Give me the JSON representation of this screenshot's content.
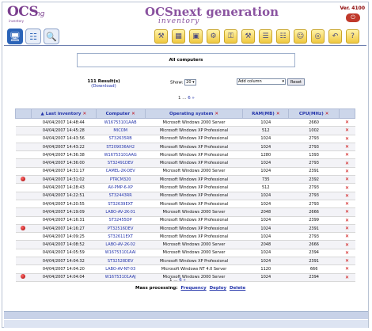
{
  "header": {
    "logo": "OCS",
    "logo_sub": "inventory",
    "logo_num": "ng",
    "title": "OCSnext generation",
    "title_sub": "inventory",
    "version": "Ver. 4100"
  },
  "toolbar": {
    "left_icons": [
      "computers-icon",
      "network-icon",
      "search-icon"
    ],
    "right_icons": [
      "tools-icon",
      "calendar-icon",
      "packages-icon",
      "settings-icon",
      "key-icon",
      "wrench-icon",
      "deploy-icon",
      "rules-icon",
      "users-icon",
      "globe-icon",
      "back-icon",
      "help-icon"
    ]
  },
  "page_title": "All computers",
  "results": {
    "count": "111 Result(s)",
    "download": "(Download)"
  },
  "show": {
    "label": "Show:",
    "value": "20"
  },
  "add_column": {
    "value": "Add column"
  },
  "reset_label": "Reset",
  "pager": {
    "prefix": "1 ...",
    "last": "6",
    "next": "»"
  },
  "table": {
    "headers": [
      "Last inventory",
      "Computer",
      "Operating system",
      "RAM(MB)",
      "CPU(MHz)"
    ],
    "rows": [
      {
        "date": "04/04/2007 14:48:44",
        "computer": "W16753101AAB",
        "os": "Microsoft Windows 2000 Server",
        "ram": "1024",
        "cpu": "2660",
        "dot": false
      },
      {
        "date": "04/04/2007 14:45:28",
        "computer": "MICOM",
        "os": "Microsoft Windows XP Professional",
        "ram": "512",
        "cpu": "1002",
        "dot": false
      },
      {
        "date": "04/04/2007 14:43:56",
        "computer": "ST32635RB",
        "os": "Microsoft Windows XP Professional",
        "ram": "1024",
        "cpu": "2793",
        "dot": false
      },
      {
        "date": "04/04/2007 14:43:22",
        "computer": "ST209036AH2",
        "os": "Microsoft Windows XP Professional",
        "ram": "1024",
        "cpu": "2793",
        "dot": false
      },
      {
        "date": "04/04/2007 14:36:38",
        "computer": "W16753101AAG",
        "os": "Microsoft Windows XP Professional",
        "ram": "1280",
        "cpu": "1393",
        "dot": false
      },
      {
        "date": "04/04/2007 14:36:00",
        "computer": "ST32491DEV",
        "os": "Microsoft Windows XP Professional",
        "ram": "1024",
        "cpu": "2793",
        "dot": false
      },
      {
        "date": "04/04/2007 14:31:17",
        "computer": "CAMEL-2K-DEV",
        "os": "Microsoft Windows 2000 Server",
        "ram": "1024",
        "cpu": "2391",
        "dot": false
      },
      {
        "date": "04/04/2007 14:31:02",
        "computer": "PTRCM320",
        "os": "Microsoft Windows XP Professional",
        "ram": "735",
        "cpu": "2392",
        "dot": true
      },
      {
        "date": "04/04/2007 14:28:43",
        "computer": "AV-PMP-6-XP",
        "os": "Microsoft Windows XP Professional",
        "ram": "512",
        "cpu": "2793",
        "dot": false
      },
      {
        "date": "04/04/2007 14:22:51",
        "computer": "ST32443RR",
        "os": "Microsoft Windows XP Professional",
        "ram": "1024",
        "cpu": "2793",
        "dot": false
      },
      {
        "date": "04/04/2007 14:20:55",
        "computer": "ST32639EXT",
        "os": "Microsoft Windows XP Professional",
        "ram": "1024",
        "cpu": "2793",
        "dot": false
      },
      {
        "date": "04/04/2007 14:19:09",
        "computer": "LABO-AV-2K-01",
        "os": "Microsoft Windows 2000 Server",
        "ram": "2048",
        "cpu": "2666",
        "dot": false
      },
      {
        "date": "04/04/2007 14:16:31",
        "computer": "ST32455DP",
        "os": "Microsoft Windows XP Professional",
        "ram": "1024",
        "cpu": "2399",
        "dot": false
      },
      {
        "date": "04/04/2007 14:16:27",
        "computer": "PT32516DEV",
        "os": "Microsoft Windows XP Professional",
        "ram": "1024",
        "cpu": "2391",
        "dot": true
      },
      {
        "date": "04/04/2007 14:09:25",
        "computer": "ST32611EXT",
        "os": "Microsoft Windows XP Professional",
        "ram": "1024",
        "cpu": "2793",
        "dot": false
      },
      {
        "date": "04/04/2007 14:08:52",
        "computer": "LABO-AV-2K-02",
        "os": "Microsoft Windows 2000 Server",
        "ram": "2048",
        "cpu": "2666",
        "dot": false
      },
      {
        "date": "04/04/2007 14:05:59",
        "computer": "W16753101AAI",
        "os": "Microsoft Windows 2000 Server",
        "ram": "1024",
        "cpu": "2394",
        "dot": false
      },
      {
        "date": "04/04/2007 14:04:32",
        "computer": "ST32528DEV",
        "os": "Microsoft Windows XP Professional",
        "ram": "1024",
        "cpu": "2391",
        "dot": false
      },
      {
        "date": "04/04/2007 14:04:20",
        "computer": "LABO-AV-NT-03",
        "os": "Microsoft Windows NT 4.0 Server",
        "ram": "1120",
        "cpu": "666",
        "dot": false
      },
      {
        "date": "04/04/2007 14:04:04",
        "computer": "W16753101AAJ",
        "os": "Microsoft Windows 2000 Server",
        "ram": "1024",
        "cpu": "2394",
        "dot": true
      }
    ]
  },
  "mass": {
    "label": "Mass processing:",
    "frequency": "Frequency",
    "deploy": "Deploy",
    "delete": "Delete"
  },
  "colors": {
    "accent": "#2233aa",
    "logo": "#7b3f8f",
    "header_bg": "#ccd6ea",
    "delete": "#c00000"
  }
}
